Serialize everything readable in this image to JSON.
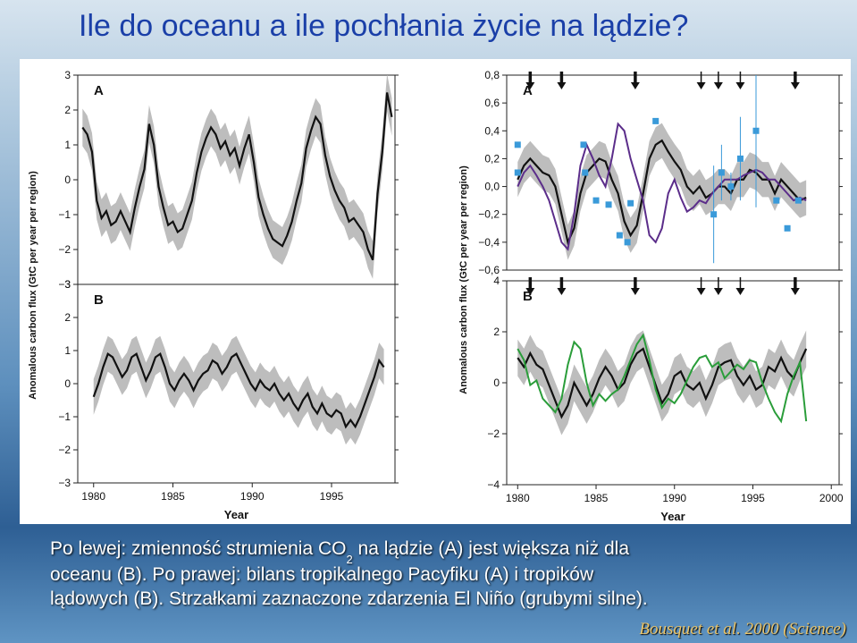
{
  "slide": {
    "title": "Ile do oceanu a ile pochłania życie na lądzie?",
    "caption_line1_a": "Po lewej: zmienność strumienia CO",
    "caption_line1_sub": "2",
    "caption_line1_b": " na lądzie (A) jest większa niż dla",
    "caption_line2": "oceanu (B). Po prawej: bilans tropikalnego Pacyfiku (A) i tropików",
    "caption_line3": "lądowych (B). Strzałkami zaznaczone zdarzenia El Niño (grubymi silne).",
    "citation": "Bousquet et al. 2000 (Science)"
  },
  "colors": {
    "title": "#1a3fa8",
    "band": "#bdbdbd",
    "mean_line": "#111111",
    "purple_line": "#5b2d8a",
    "green_line": "#2a9d3a",
    "points": "#3a9ad9"
  },
  "chart_data": [
    {
      "type": "line",
      "panel_label": "A",
      "ylabel": "Anomalous carbon flux (GtC per year per region)",
      "xlabel": "",
      "ylim": [
        -3,
        3
      ],
      "yticks": [
        "3",
        "2",
        "1",
        "0",
        "−1",
        "−2",
        "−3"
      ],
      "xticks": [],
      "series": [
        {
          "x": [
            1979.3,
            1979.6,
            1979.9,
            1980.2,
            1980.5,
            1980.8,
            1981.1,
            1981.4,
            1981.7,
            1982.0,
            1982.3,
            1982.6,
            1982.9,
            1983.2,
            1983.5,
            1983.8,
            1984.1,
            1984.4,
            1984.7,
            1985.0,
            1985.3,
            1985.6,
            1985.9,
            1986.2,
            1986.5,
            1986.8,
            1987.1,
            1987.4,
            1987.7,
            1988.0,
            1988.3,
            1988.6,
            1988.9,
            1989.2,
            1989.5,
            1989.8,
            1990.1,
            1990.4,
            1990.7,
            1991.0,
            1991.3,
            1991.6,
            1991.9,
            1992.2,
            1992.5,
            1992.8,
            1993.1,
            1993.4,
            1993.7,
            1994.0,
            1994.3,
            1994.6,
            1994.9,
            1995.2,
            1995.5,
            1995.8,
            1996.1,
            1996.4,
            1996.7,
            1997.0,
            1997.3,
            1997.6,
            1997.9,
            1998.2,
            1998.5,
            1998.8
          ],
          "values": [
            1.5,
            1.3,
            0.8,
            -0.6,
            -1.1,
            -0.9,
            -1.3,
            -1.2,
            -0.9,
            -1.2,
            -1.5,
            -0.8,
            -0.2,
            0.3,
            1.6,
            1.0,
            -0.2,
            -0.8,
            -1.3,
            -1.2,
            -1.5,
            -1.4,
            -1.0,
            -0.6,
            0.2,
            0.8,
            1.2,
            1.5,
            1.3,
            0.9,
            1.1,
            0.7,
            0.9,
            0.4,
            0.9,
            1.3,
            0.5,
            -0.5,
            -1.0,
            -1.4,
            -1.7,
            -1.8,
            -1.9,
            -1.6,
            -1.2,
            -0.6,
            -0.1,
            0.9,
            1.4,
            1.8,
            1.6,
            0.7,
            0.1,
            -0.3,
            -0.6,
            -0.8,
            -1.2,
            -1.1,
            -1.3,
            -1.5,
            -2.0,
            -2.3,
            -0.4,
            0.8,
            2.5,
            1.8
          ]
        }
      ]
    },
    {
      "type": "line",
      "panel_label": "B",
      "ylabel": "",
      "xlabel": "Year",
      "ylim": [
        -3,
        3
      ],
      "yticks": [
        "3",
        "2",
        "1",
        "0",
        "−1",
        "−2",
        "−3"
      ],
      "xticks": [
        "1980",
        "1985",
        "1990",
        "1995"
      ],
      "series": [
        {
          "x": [
            1980.0,
            1980.3,
            1980.6,
            1980.9,
            1981.2,
            1981.5,
            1981.8,
            1982.1,
            1982.4,
            1982.7,
            1983.0,
            1983.3,
            1983.6,
            1983.9,
            1984.2,
            1984.5,
            1984.8,
            1985.1,
            1985.4,
            1985.7,
            1986.0,
            1986.3,
            1986.6,
            1986.9,
            1987.2,
            1987.5,
            1987.8,
            1988.1,
            1988.4,
            1988.7,
            1989.0,
            1989.3,
            1989.6,
            1989.9,
            1990.2,
            1990.5,
            1990.8,
            1991.1,
            1991.4,
            1991.7,
            1992.0,
            1992.3,
            1992.6,
            1992.9,
            1993.2,
            1993.5,
            1993.8,
            1994.1,
            1994.4,
            1994.7,
            1995.0,
            1995.3,
            1995.6,
            1995.9,
            1996.2,
            1996.5,
            1996.8,
            1997.1,
            1997.4,
            1997.7,
            1998.0,
            1998.3
          ],
          "values": [
            -0.4,
            0.0,
            0.5,
            0.9,
            0.8,
            0.5,
            0.2,
            0.4,
            0.8,
            0.9,
            0.5,
            0.1,
            0.4,
            0.8,
            0.9,
            0.5,
            0.0,
            -0.2,
            0.1,
            0.3,
            0.1,
            -0.2,
            0.1,
            0.3,
            0.4,
            0.7,
            0.6,
            0.3,
            0.5,
            0.8,
            0.9,
            0.6,
            0.3,
            0.0,
            -0.2,
            0.1,
            -0.1,
            -0.2,
            0.0,
            -0.3,
            -0.5,
            -0.3,
            -0.6,
            -0.8,
            -0.5,
            -0.3,
            -0.7,
            -0.9,
            -0.6,
            -0.9,
            -1.0,
            -0.8,
            -0.9,
            -1.3,
            -1.1,
            -1.3,
            -1.0,
            -0.6,
            -0.2,
            0.2,
            0.7,
            0.5
          ]
        }
      ]
    },
    {
      "type": "line",
      "panel_label": "A",
      "ylabel": "Anomalous carbon flux (GtC per year per region)",
      "xlabel": "",
      "ylim": [
        -0.6,
        0.8
      ],
      "yticks": [
        "0,8",
        "0,6",
        "0,4",
        "0,2",
        "0,0",
        "−0,2",
        "−0,4",
        "−0,6"
      ],
      "xticks": [],
      "el_nino_events": [
        {
          "year": 1980.8,
          "strength": "strong"
        },
        {
          "year": 1982.8,
          "strength": "strong"
        },
        {
          "year": 1987.5,
          "strength": "strong"
        },
        {
          "year": 1991.7,
          "strength": "weak"
        },
        {
          "year": 1992.8,
          "strength": "weak"
        },
        {
          "year": 1994.2,
          "strength": "weak"
        },
        {
          "year": 1997.7,
          "strength": "strong"
        }
      ],
      "series": [
        {
          "name": "",
          "color": "#111111",
          "x": [
            1980.0,
            1980.4,
            1980.8,
            1981.2,
            1981.6,
            1982.0,
            1982.4,
            1982.8,
            1983.2,
            1983.6,
            1984.0,
            1984.4,
            1984.8,
            1985.2,
            1985.6,
            1986.0,
            1986.4,
            1986.8,
            1987.2,
            1987.6,
            1988.0,
            1988.4,
            1988.8,
            1989.2,
            1989.6,
            1990.0,
            1990.4,
            1990.8,
            1991.2,
            1991.6,
            1992.0,
            1992.4,
            1992.8,
            1993.2,
            1993.6,
            1994.0,
            1994.4,
            1994.8,
            1995.2,
            1995.6,
            1996.0,
            1996.4,
            1996.8,
            1997.2,
            1997.6,
            1998.0,
            1998.4
          ],
          "values": [
            0.05,
            0.15,
            0.2,
            0.15,
            0.1,
            0.08,
            0.0,
            -0.2,
            -0.4,
            -0.3,
            -0.05,
            0.1,
            0.15,
            0.2,
            0.18,
            0.05,
            -0.05,
            -0.25,
            -0.35,
            -0.28,
            -0.05,
            0.2,
            0.3,
            0.33,
            0.25,
            0.18,
            0.12,
            0.0,
            -0.05,
            0.0,
            -0.08,
            -0.05,
            0.0,
            0.0,
            -0.05,
            0.05,
            0.05,
            0.12,
            0.1,
            0.05,
            0.05,
            -0.05,
            0.05,
            0.0,
            -0.05,
            -0.1,
            -0.08
          ]
        },
        {
          "name": "",
          "color": "#5b2d8a",
          "x": [
            1980.0,
            1980.4,
            1980.8,
            1981.2,
            1981.6,
            1982.0,
            1982.4,
            1982.8,
            1983.2,
            1983.6,
            1984.0,
            1984.4,
            1984.8,
            1985.2,
            1985.6,
            1986.0,
            1986.4,
            1986.8,
            1987.2,
            1987.6,
            1988.0,
            1988.4,
            1988.8,
            1989.2,
            1989.6,
            1990.0,
            1990.4,
            1990.8,
            1991.2,
            1991.6,
            1992.0,
            1992.4,
            1992.8,
            1993.2,
            1993.6,
            1994.0,
            1994.4,
            1994.8,
            1995.2,
            1995.6,
            1996.0,
            1996.4,
            1996.8,
            1997.2,
            1997.6,
            1998.0,
            1998.4
          ],
          "values": [
            0.0,
            0.1,
            0.15,
            0.08,
            0.0,
            -0.1,
            -0.25,
            -0.4,
            -0.45,
            -0.2,
            0.15,
            0.3,
            0.2,
            0.08,
            0.0,
            0.2,
            0.45,
            0.4,
            0.2,
            0.05,
            -0.1,
            -0.35,
            -0.4,
            -0.3,
            -0.05,
            0.05,
            -0.08,
            -0.18,
            -0.15,
            -0.1,
            -0.12,
            -0.05,
            0.0,
            0.05,
            0.05,
            0.05,
            0.08,
            0.1,
            0.12,
            0.1,
            0.05,
            0.05,
            0.0,
            -0.05,
            -0.1,
            -0.08,
            -0.1
          ]
        },
        {
          "name": "",
          "color": "#3a9ad9",
          "type": "scatter",
          "x": [
            1980.0,
            1980.0,
            1984.2,
            1984.3,
            1985.0,
            1985.8,
            1986.5,
            1987.0,
            1987.2,
            1988.8,
            1992.5,
            1993.0,
            1993.6,
            1994.2,
            1995.2,
            1996.5,
            1997.2,
            1997.9
          ],
          "values": [
            0.3,
            0.1,
            0.3,
            0.1,
            -0.1,
            -0.13,
            -0.35,
            -0.4,
            -0.12,
            0.47,
            -0.2,
            0.1,
            0.0,
            0.2,
            0.4,
            -0.1,
            -0.3,
            -0.1
          ],
          "errors": [
            0,
            0,
            0,
            0,
            0,
            0,
            0,
            0,
            0,
            0,
            0.35,
            0.2,
            0.1,
            0.3,
            0.55,
            0,
            0,
            0
          ]
        }
      ]
    },
    {
      "type": "line",
      "panel_label": "B",
      "ylabel": "",
      "xlabel": "Year",
      "ylim": [
        -5,
        4
      ],
      "yticks": [
        "4",
        "2",
        "0",
        "−2",
        "−4"
      ],
      "xticks": [
        "1980",
        "1985",
        "1990",
        "1995",
        "2000"
      ],
      "el_nino_events": [
        {
          "year": 1980.8,
          "strength": "strong"
        },
        {
          "year": 1982.8,
          "strength": "strong"
        },
        {
          "year": 1987.5,
          "strength": "strong"
        },
        {
          "year": 1991.7,
          "strength": "weak"
        },
        {
          "year": 1992.8,
          "strength": "weak"
        },
        {
          "year": 1994.2,
          "strength": "weak"
        },
        {
          "year": 1997.7,
          "strength": "strong"
        }
      ],
      "series": [
        {
          "name": "",
          "color": "#111111",
          "x": [
            1980.0,
            1980.4,
            1980.8,
            1981.2,
            1981.6,
            1982.0,
            1982.4,
            1982.8,
            1983.2,
            1983.6,
            1984.0,
            1984.4,
            1984.8,
            1985.2,
            1985.6,
            1986.0,
            1986.4,
            1986.8,
            1987.2,
            1987.6,
            1988.0,
            1988.4,
            1988.8,
            1989.2,
            1989.6,
            1990.0,
            1990.4,
            1990.8,
            1991.2,
            1991.6,
            1992.0,
            1992.4,
            1992.8,
            1993.2,
            1993.6,
            1994.0,
            1994.4,
            1994.8,
            1995.2,
            1995.6,
            1996.0,
            1996.4,
            1996.8,
            1997.2,
            1997.6,
            1998.0,
            1998.4
          ],
          "values": [
            0.6,
            0.2,
            0.8,
            0.3,
            0.1,
            -0.6,
            -1.3,
            -2.0,
            -1.5,
            -0.5,
            -1.0,
            -1.5,
            -1.0,
            -0.3,
            0.2,
            -0.2,
            -0.8,
            -0.5,
            0.3,
            0.8,
            1.0,
            0.2,
            -0.6,
            -1.4,
            -1.0,
            -0.2,
            0.0,
            -0.6,
            -0.8,
            -0.5,
            -1.2,
            -0.6,
            0.2,
            0.4,
            0.5,
            -0.2,
            -0.6,
            -0.2,
            -0.8,
            -0.6,
            0.2,
            0.0,
            0.6,
            0.0,
            -0.3,
            0.4,
            1.0
          ]
        },
        {
          "name": "",
          "color": "#2a9d3a",
          "x": [
            1980.0,
            1980.4,
            1980.8,
            1981.2,
            1981.6,
            1982.0,
            1982.4,
            1982.8,
            1983.2,
            1983.6,
            1984.0,
            1984.4,
            1984.8,
            1985.2,
            1985.6,
            1986.0,
            1986.4,
            1986.8,
            1987.2,
            1987.6,
            1988.0,
            1988.4,
            1988.8,
            1989.2,
            1989.6,
            1990.0,
            1990.4,
            1990.8,
            1991.2,
            1991.6,
            1992.0,
            1992.4,
            1992.8,
            1993.2,
            1993.6,
            1994.0,
            1994.4,
            1994.8,
            1995.2,
            1995.6,
            1996.0,
            1996.4,
            1996.8,
            1997.2,
            1997.6,
            1998.0,
            1998.4
          ],
          "values": [
            1.0,
            0.5,
            -0.6,
            -0.4,
            -1.2,
            -1.5,
            -1.8,
            -1.2,
            0.3,
            1.3,
            1.0,
            -0.5,
            -1.5,
            -1.0,
            -1.3,
            -1.0,
            -0.8,
            -0.2,
            0.5,
            1.2,
            1.6,
            0.5,
            -0.8,
            -1.6,
            -1.2,
            -1.4,
            -1.0,
            -0.4,
            0.2,
            0.6,
            0.7,
            0.2,
            0.4,
            -0.3,
            0.0,
            0.3,
            0.1,
            0.5,
            0.4,
            -0.5,
            -1.2,
            -1.8,
            -2.2,
            -1.0,
            -0.2,
            0.4,
            -2.2
          ]
        }
      ]
    }
  ]
}
